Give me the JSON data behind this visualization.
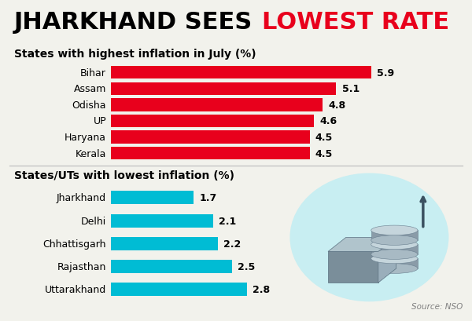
{
  "title_black": "JHARKHAND SEES ",
  "title_red": "LOWEST RATE",
  "subtitle_top": "States with highest inflation in July (%)",
  "subtitle_bottom": "States/UTs with lowest inflation (%)",
  "high_states": [
    "Bihar",
    "Assam",
    "Odisha",
    "UP",
    "Haryana",
    "Kerala"
  ],
  "high_values": [
    5.9,
    5.1,
    4.8,
    4.6,
    4.5,
    4.5
  ],
  "low_states": [
    "Jharkhand",
    "Delhi",
    "Chhattisgarh",
    "Rajasthan",
    "Uttarakhand"
  ],
  "low_values": [
    1.7,
    2.1,
    2.2,
    2.5,
    2.8
  ],
  "high_color": "#E8001C",
  "low_color": "#00BCD4",
  "bg_color": "#F2F2EC",
  "source_text": "Source: NSO",
  "title_fontsize": 22,
  "subtitle_fontsize": 10,
  "label_fontsize": 9,
  "value_fontsize": 9
}
